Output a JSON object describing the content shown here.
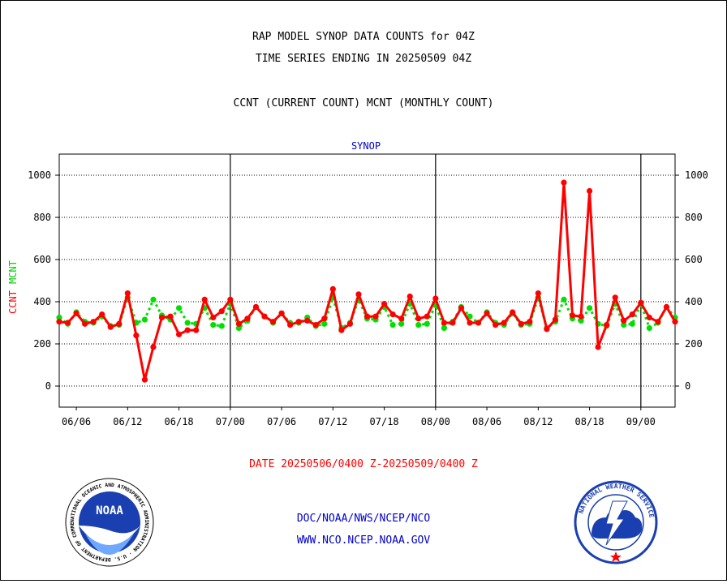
{
  "header": {
    "title_line1": "RAP MODEL SYNOP DATA COUNTS for 04Z",
    "title_line2": "TIME SERIES ENDING IN 20250509 04Z",
    "subtitle": "CCNT (CURRENT COUNT) MCNT (MONTHLY COUNT)"
  },
  "footer": {
    "date_range": "DATE 20250506/0400 Z-20250509/0400 Z",
    "agency": "DOC/NOAA/NWS/NCEP/NCO",
    "website": "WWW.NCO.NCEP.NOAA.GOV"
  },
  "logos": {
    "left": "NOAA",
    "left_ring": "NATIONAL OCEANIC AND ATMOSPHERIC ADMINISTRATION · U.S. DEPARTMENT OF COMMERCE",
    "right_ring": "NATIONAL WEATHER SERVICE"
  },
  "colors": {
    "ccnt": "#ff0000",
    "mcnt": "#00e000",
    "panel_title": "#0000cc",
    "footer_link": "#0000cc"
  },
  "chart_data": {
    "type": "line",
    "title": "SYNOP",
    "ylabel_series": [
      "CCNT",
      "MCNT"
    ],
    "ylim": [
      -100,
      1100
    ],
    "yticks": [
      0,
      200,
      400,
      600,
      800,
      1000
    ],
    "xlim": [
      0,
      72
    ],
    "xticks": [
      {
        "label": "06/06",
        "x": 2
      },
      {
        "label": "06/12",
        "x": 8
      },
      {
        "label": "06/18",
        "x": 14
      },
      {
        "label": "07/00",
        "x": 20
      },
      {
        "label": "07/06",
        "x": 26
      },
      {
        "label": "07/12",
        "x": 32
      },
      {
        "label": "07/18",
        "x": 38
      },
      {
        "label": "08/00",
        "x": 44
      },
      {
        "label": "08/06",
        "x": 50
      },
      {
        "label": "08/12",
        "x": 56
      },
      {
        "label": "08/18",
        "x": 62
      },
      {
        "label": "09/00",
        "x": 68
      }
    ],
    "day_dividers": [
      20,
      44,
      68
    ],
    "grid": true,
    "series": [
      {
        "name": "CCNT",
        "color": "#ff0000",
        "style": "solid",
        "x": [
          0,
          1,
          2,
          3,
          4,
          5,
          6,
          7,
          8,
          9,
          10,
          11,
          12,
          13,
          14,
          15,
          16,
          17,
          18,
          19,
          20,
          21,
          22,
          23,
          24,
          25,
          26,
          27,
          28,
          29,
          30,
          31,
          32,
          33,
          34,
          35,
          36,
          37,
          38,
          39,
          40,
          41,
          42,
          43,
          44,
          45,
          46,
          47,
          48,
          49,
          50,
          51,
          52,
          53,
          54,
          55,
          56,
          57,
          58,
          59,
          60,
          61,
          62,
          63,
          64,
          65,
          66,
          67,
          68,
          69,
          70,
          71,
          72
        ],
        "values": [
          305,
          300,
          345,
          295,
          305,
          340,
          280,
          295,
          440,
          240,
          30,
          185,
          325,
          330,
          245,
          265,
          265,
          410,
          325,
          355,
          410,
          295,
          320,
          375,
          330,
          305,
          345,
          290,
          305,
          310,
          290,
          320,
          460,
          265,
          295,
          435,
          330,
          330,
          390,
          340,
          320,
          425,
          320,
          330,
          415,
          300,
          300,
          370,
          300,
          300,
          345,
          290,
          300,
          350,
          295,
          305,
          440,
          270,
          315,
          965,
          335,
          330,
          925,
          185,
          290,
          420,
          310,
          340,
          395,
          325,
          305,
          375,
          305
        ]
      },
      {
        "name": "MCNT",
        "color": "#00e000",
        "style": "dotted",
        "x": [
          0,
          1,
          2,
          3,
          4,
          5,
          6,
          7,
          8,
          9,
          10,
          11,
          12,
          13,
          14,
          15,
          16,
          17,
          18,
          19,
          20,
          21,
          22,
          23,
          24,
          25,
          26,
          27,
          28,
          29,
          30,
          31,
          32,
          33,
          34,
          35,
          36,
          37,
          38,
          39,
          40,
          41,
          42,
          43,
          44,
          45,
          46,
          47,
          48,
          49,
          50,
          51,
          52,
          53,
          54,
          55,
          56,
          57,
          58,
          59,
          60,
          61,
          62,
          63,
          64,
          65,
          66,
          67,
          68,
          69,
          70,
          71,
          72
        ],
        "values": [
          325,
          295,
          350,
          305,
          300,
          330,
          285,
          290,
          420,
          300,
          315,
          410,
          335,
          315,
          370,
          300,
          295,
          370,
          290,
          285,
          390,
          275,
          310,
          375,
          330,
          300,
          345,
          300,
          300,
          325,
          285,
          295,
          420,
          275,
          300,
          410,
          320,
          315,
          375,
          290,
          295,
          390,
          290,
          295,
          385,
          275,
          305,
          375,
          330,
          300,
          350,
          300,
          290,
          345,
          290,
          295,
          420,
          275,
          305,
          410,
          320,
          310,
          370,
          295,
          285,
          390,
          290,
          295,
          390,
          275,
          300,
          375,
          325
        ]
      }
    ]
  }
}
